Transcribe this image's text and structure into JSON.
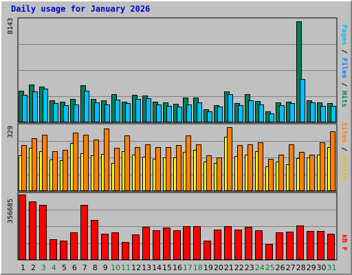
{
  "title": "Daily usage for January 2026",
  "colors": {
    "background": "#c0c0c0",
    "hits": "#00805c",
    "files": "#00c0ff",
    "pages": "#00e0ff",
    "visits": "#ffff00",
    "sites": "#ff8000",
    "kbytes": "#ff0000",
    "weekend_day": "#008040",
    "weekday_day": "#000000"
  },
  "labels": {
    "max_hits": "8143",
    "max_visits": "329",
    "max_kbytes": "356685",
    "right_top": {
      "pages": "Pages",
      "sep1": " / ",
      "files": "Files",
      "sep2": " / ",
      "hits": "Hits"
    },
    "right_mid": {
      "sites": "Sites",
      "sep": " / ",
      "visits": "Visits"
    },
    "right_bot": {
      "kbytes": "kB F"
    }
  },
  "chart_data": [
    {
      "type": "bar",
      "title": "Daily usage for January 2026",
      "categories": [
        "1",
        "2",
        "3",
        "4",
        "5",
        "6",
        "7",
        "8",
        "9",
        "10",
        "11",
        "12",
        "13",
        "14",
        "15",
        "16",
        "17",
        "18",
        "19",
        "20",
        "21",
        "22",
        "23",
        "24",
        "25",
        "26",
        "27",
        "28",
        "29",
        "30",
        "31"
      ],
      "weekend_days": [
        "3",
        "4",
        "10",
        "11",
        "17",
        "18",
        "24",
        "25",
        "31"
      ],
      "ylim": [
        0,
        8143
      ],
      "series": [
        {
          "name": "Hits",
          "values": [
            2500,
            3000,
            2800,
            1750,
            1650,
            1850,
            2950,
            1850,
            1750,
            2200,
            1650,
            2150,
            2100,
            1650,
            1600,
            1450,
            1950,
            1950,
            1050,
            1350,
            2450,
            1500,
            2200,
            1700,
            850,
            1550,
            1650,
            8000,
            1750,
            1550,
            1500
          ]
        },
        {
          "name": "Files",
          "values": [
            2150,
            2450,
            2650,
            1500,
            1350,
            1400,
            2500,
            1550,
            1400,
            1800,
            1500,
            1850,
            1900,
            1400,
            1300,
            1250,
            1400,
            1550,
            850,
            1250,
            2250,
            1350,
            1750,
            1400,
            700,
            1350,
            1500,
            3400,
            1550,
            1300,
            1300
          ]
        }
      ]
    },
    {
      "type": "bar",
      "ylim": [
        0,
        329
      ],
      "series": [
        {
          "name": "Visits",
          "values": [
            178,
            215,
            200,
            159,
            154,
            240,
            190,
            178,
            186,
            139,
            198,
            183,
            173,
            161,
            167,
            167,
            194,
            204,
            148,
            140,
            272,
            176,
            183,
            199,
            124,
            147,
            134,
            165,
            167,
            182,
            219
          ]
        },
        {
          "name": "Sites",
          "values": [
            228,
            265,
            280,
            199,
            206,
            290,
            282,
            256,
            311,
            217,
            278,
            220,
            233,
            218,
            219,
            231,
            278,
            233,
            177,
            169,
            318,
            228,
            234,
            242,
            161,
            183,
            232,
            196,
            180,
            242,
            299
          ]
        }
      ]
    },
    {
      "type": "bar",
      "ylim": [
        0,
        356685
      ],
      "series": [
        {
          "name": "KBytes",
          "values": [
            352000,
            316000,
            296000,
            110000,
            103000,
            150000,
            298000,
            215000,
            141000,
            150000,
            96000,
            138000,
            179000,
            159000,
            174000,
            158000,
            182000,
            182000,
            105000,
            163000,
            183000,
            163000,
            180000,
            160000,
            86000,
            148000,
            152000,
            185000,
            155000,
            155000,
            142000
          ]
        }
      ]
    }
  ]
}
